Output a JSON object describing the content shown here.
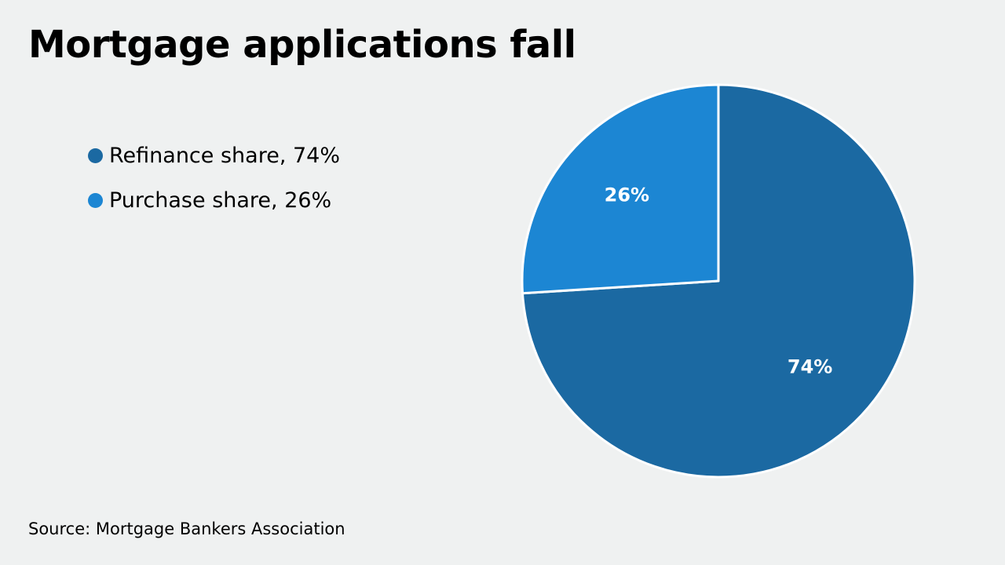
{
  "chart_data": {
    "type": "pie",
    "title": "Mortgage applications fall",
    "legend_position": "left",
    "slices": [
      {
        "category": "Refinance share",
        "value": 74,
        "legend_label": "Refinance share, 74%",
        "data_label": "74%",
        "color": "#1b69a2"
      },
      {
        "category": "Purchase share",
        "value": 26,
        "legend_label": "Purchase share, 26%",
        "data_label": "26%",
        "color": "#1c86d3"
      }
    ],
    "source": "Source: Mortgage Bankers Association"
  }
}
